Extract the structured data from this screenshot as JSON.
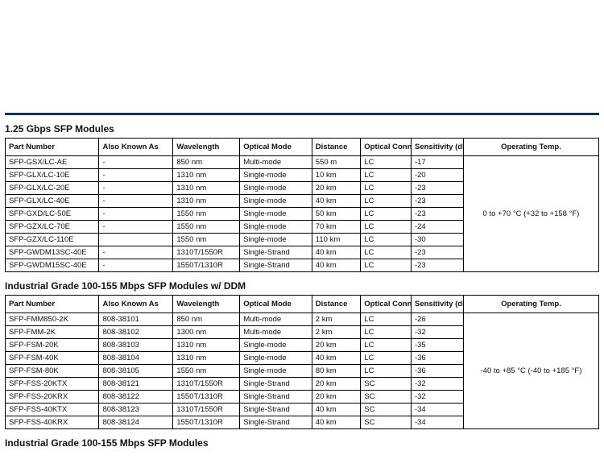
{
  "accent_color": "#1a2f5a",
  "section1": {
    "title": "1.25 Gbps SFP Modules",
    "headers": [
      "Part Number",
      "Also Known As",
      "Wavelength",
      "Optical Mode",
      "Distance",
      "Optical Connector",
      "Sensitivity (dB)",
      "Operating Temp."
    ],
    "temp": "0 to +70 °C (+32 to +158 °F)",
    "rows": [
      [
        "SFP-GSX/LC-AE",
        "-",
        "850 nm",
        "Multi-mode",
        "550 m",
        "LC",
        "-17"
      ],
      [
        "SFP-GLX/LC-10E",
        "-",
        "1310 nm",
        "Single-mode",
        "10 km",
        "LC",
        "-20"
      ],
      [
        "SFP-GLX/LC-20E",
        "-",
        "1310 nm",
        "Single-mode",
        "20 km",
        "LC",
        "-23"
      ],
      [
        "SFP-GLX/LC-40E",
        "-",
        "1310 nm",
        "Single-mode",
        "40 km",
        "LC",
        "-23"
      ],
      [
        "SFP-GXD/LC-50E",
        "-",
        "1550 nm",
        "Single-mode",
        "50 km",
        "LC",
        "-23"
      ],
      [
        "SFP-GZX/LC-70E",
        "-",
        "1550 nm",
        "Single-mode",
        "70 km",
        "LC",
        "-24"
      ],
      [
        "SFP-GZX/LC-110E",
        "",
        "1550 nm",
        "Single-mode",
        "110 km",
        "LC",
        "-30"
      ],
      [
        "SFP-GWDM13SC-40E",
        "-",
        "1310T/1550R",
        "Single-Strand",
        "40 km",
        "LC",
        "-23"
      ],
      [
        "SFP-GWDM15SC-40E",
        "-",
        "1550T/1310R",
        "Single-Strand",
        "40 km",
        "LC",
        "-23"
      ]
    ]
  },
  "section2": {
    "title": "Industrial Grade 100-155 Mbps SFP Modules  w/ DDM",
    "headers": [
      "Part Number",
      "Also Known As",
      "Wavelength",
      "Optical Mode",
      "Distance",
      "Optical Connector",
      "Sensitivity (dB)",
      "Operating Temp."
    ],
    "temp": "-40 to +85 °C (-40 to +185 °F)",
    "rows": [
      [
        "SFP-FMM850-2K",
        "808-38101",
        "850 nm",
        "Multi-mode",
        "2 km",
        "LC",
        "-26"
      ],
      [
        "SFP-FMM-2K",
        "808-38102",
        "1300 nm",
        "Multi-mode",
        "2 km",
        "LC",
        "-32"
      ],
      [
        "SFP-FSM-20K",
        "808-38103",
        "1310 nm",
        "Single-mode",
        "20 km",
        "LC",
        "-35"
      ],
      [
        "SFP-FSM-40K",
        "808-38104",
        "1310 nm",
        "Single-mode",
        "40 km",
        "LC",
        "-36"
      ],
      [
        "SFP-FSM-80K",
        "808-38105",
        "1550 nm",
        "Single-mode",
        "80 km",
        "LC",
        "-36"
      ],
      [
        "SFP-FSS-20KTX",
        "808-38121",
        "1310T/1550R",
        "Single-Strand",
        "20 km",
        "SC",
        "-32"
      ],
      [
        "SFP-FSS-20KRX",
        "808-38122",
        "1550T/1310R",
        "Single-Strand",
        "20 km",
        "SC",
        "-32"
      ],
      [
        "SFP-FSS-40KTX",
        "808-38123",
        "1310T/1550R",
        "Single-Strand",
        "40 km",
        "SC",
        "-34"
      ],
      [
        "SFP-FSS-40KRX",
        "808-38124",
        "1550T/1310R",
        "Single-Strand",
        "40 km",
        "SC",
        "-34"
      ]
    ]
  },
  "section3": {
    "title": "Industrial Grade 100-155 Mbps SFP Modules"
  },
  "col_classes": [
    "col-part",
    "col-aka",
    "col-wave",
    "col-mode",
    "col-dist",
    "col-conn",
    "col-sens",
    "col-temp"
  ]
}
